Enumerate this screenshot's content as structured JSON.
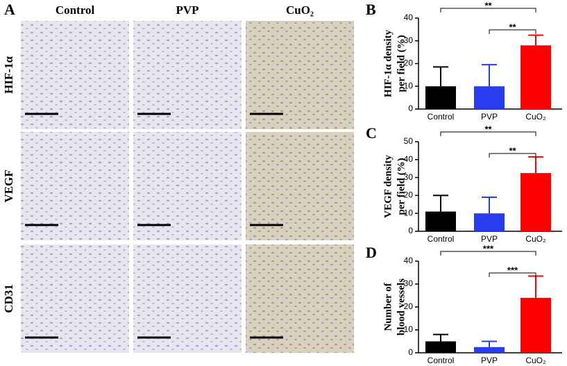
{
  "image_panel": {
    "label": "A",
    "columns": [
      "Control",
      "PVP",
      "CuO₂"
    ],
    "rows": [
      "HIF-1α",
      "VEGF",
      "CD31"
    ]
  },
  "chart_data": [
    {
      "type": "bar",
      "panel": "B",
      "ylabel": [
        "HIF-1α density",
        "per field (%)"
      ],
      "categories": [
        "Control",
        "PVP",
        "CuO₂"
      ],
      "values": [
        10,
        10,
        28
      ],
      "errors": [
        8.5,
        9.5,
        4.5
      ],
      "colors": [
        "#000000",
        "#2a3cf0",
        "#ff0000"
      ],
      "ylim": [
        0,
        40
      ],
      "yticks": [
        0,
        10,
        20,
        30,
        40
      ],
      "annotations": [
        "**",
        "**"
      ]
    },
    {
      "type": "bar",
      "panel": "C",
      "ylabel": [
        "VEGF density",
        "per field (%)"
      ],
      "categories": [
        "Control",
        "PVP",
        "CuO₂"
      ],
      "values": [
        11,
        10,
        32.5
      ],
      "errors": [
        9,
        9,
        9
      ],
      "colors": [
        "#000000",
        "#2a3cf0",
        "#ff0000"
      ],
      "ylim": [
        0,
        50
      ],
      "yticks": [
        0,
        10,
        20,
        30,
        40,
        50
      ],
      "annotations": [
        "**",
        "**"
      ]
    },
    {
      "type": "bar",
      "panel": "D",
      "ylabel": [
        "Number of",
        "blood vessels"
      ],
      "categories": [
        "Control",
        "PVP",
        "CuO₂"
      ],
      "values": [
        5,
        2.5,
        24
      ],
      "errors": [
        3,
        2.5,
        9.5
      ],
      "colors": [
        "#000000",
        "#2a3cf0",
        "#ff0000"
      ],
      "ylim": [
        0,
        40
      ],
      "yticks": [
        0,
        10,
        20,
        30,
        40
      ],
      "annotations": [
        "***",
        "***"
      ]
    }
  ]
}
